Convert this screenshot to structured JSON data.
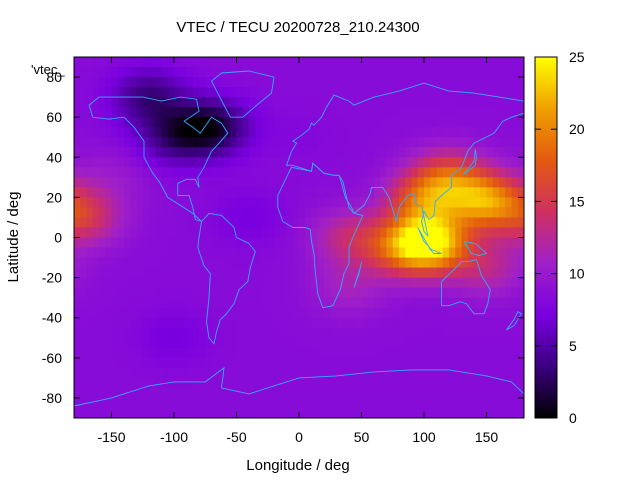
{
  "chart_data": {
    "type": "heatmap",
    "title": "VTEC / TECU 20200728_210.24300",
    "series_label": "'vtec_",
    "xlabel": "Longitude / deg",
    "ylabel": "Latitude / deg",
    "xlim": [
      -180,
      180
    ],
    "ylim": [
      -90,
      90
    ],
    "xticks": [
      -150,
      -100,
      -50,
      0,
      50,
      100,
      150
    ],
    "yticks": [
      -80,
      -60,
      -40,
      -20,
      0,
      20,
      40,
      60,
      80
    ],
    "colorbar": {
      "range": [
        0,
        25
      ],
      "ticks": [
        0,
        5,
        10,
        15,
        20,
        25
      ],
      "palette": [
        "#000000",
        "#3b0080",
        "#7a00e0",
        "#a020c8",
        "#d03060",
        "#e25a10",
        "#f0a000",
        "#ffff00"
      ]
    },
    "grid": false,
    "overlay": "coastlines",
    "coastline_color": "#33aaff",
    "features": [
      {
        "lon": -172,
        "lat": 10,
        "value": 14.5
      },
      {
        "lon": -100,
        "lat": 50,
        "value": 4
      },
      {
        "lon": -70,
        "lat": 55,
        "value": 1.5
      },
      {
        "lon": -120,
        "lat": 70,
        "value": 3.5
      },
      {
        "lon": 100,
        "lat": 18,
        "value": 17
      },
      {
        "lon": 150,
        "lat": 18,
        "value": 20
      },
      {
        "lon": 120,
        "lat": 30,
        "value": 16
      },
      {
        "lon": 105,
        "lat": -3,
        "value": 24
      },
      {
        "lon": 80,
        "lat": -5,
        "value": 15
      },
      {
        "lon": 40,
        "lat": 0,
        "value": 13
      },
      {
        "lon": 150,
        "lat": -15,
        "value": 12.5
      },
      {
        "lon": 40,
        "lat": -25,
        "value": 11
      },
      {
        "lon": -150,
        "lat": 30,
        "value": 10
      },
      {
        "lon": -40,
        "lat": 10,
        "value": 7
      },
      {
        "lon": 0,
        "lat": 50,
        "value": 8
      },
      {
        "lon": -100,
        "lat": -50,
        "value": 7
      }
    ],
    "background_value": 8.5
  }
}
